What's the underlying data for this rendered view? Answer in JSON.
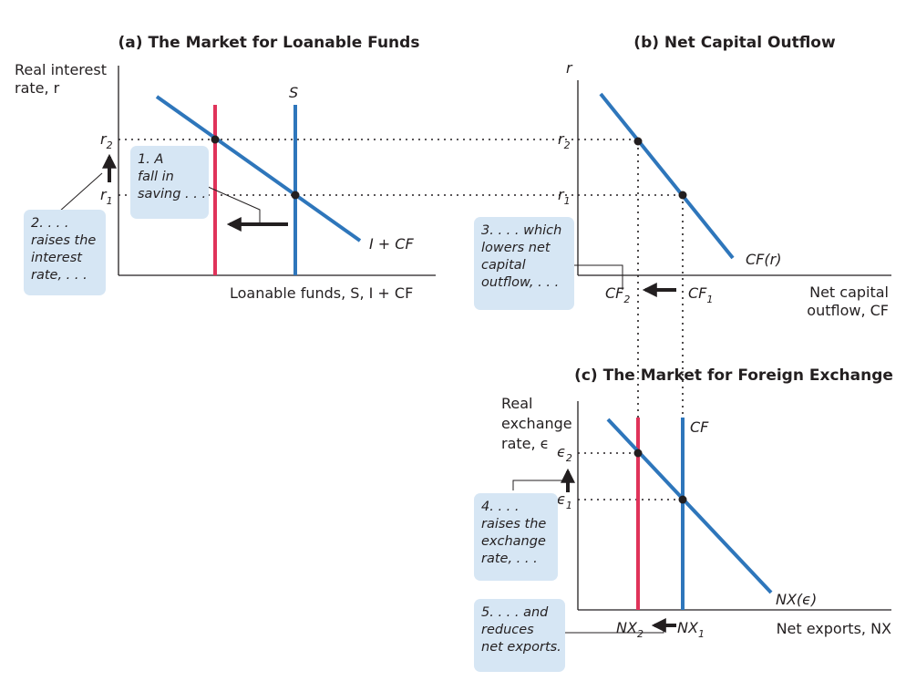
{
  "chart_data": [
    {
      "type": "line",
      "title": "(a) The Market for Loanable Funds",
      "ylabel_lines": [
        "Real interest",
        "rate, r"
      ],
      "xlabel": "Loanable funds, S, I + CF",
      "y_ticks": [
        {
          "main": "r",
          "sub": "2"
        },
        {
          "main": "r",
          "sub": "1"
        }
      ],
      "curves": [
        {
          "name": "S",
          "kind": "vertical",
          "shift": "fall in saving"
        },
        {
          "name": "I + CF",
          "kind": "downward-sloping"
        }
      ]
    },
    {
      "type": "line",
      "title": "(b) Net Capital Outflow",
      "ylabel": "r",
      "xlabel_lines": [
        "Net capital",
        "outflow, CF"
      ],
      "y_ticks": [
        {
          "main": "r",
          "sub": "2"
        },
        {
          "main": "r",
          "sub": "1"
        }
      ],
      "x_ticks": [
        {
          "main": "CF",
          "sub": "2"
        },
        {
          "main": "CF",
          "sub": "1"
        }
      ],
      "curves": [
        {
          "name": "CF(r)",
          "kind": "downward-sloping"
        }
      ]
    },
    {
      "type": "line",
      "title": "(c) The Market for Foreign Exchange",
      "ylabel_lines": [
        "Real",
        "exchange",
        "rate, ϵ"
      ],
      "xlabel": "Net exports, NX",
      "y_ticks": [
        {
          "main": "ϵ",
          "sub": "2"
        },
        {
          "main": "ϵ",
          "sub": "1"
        }
      ],
      "x_ticks": [
        {
          "main": "NX",
          "sub": "2"
        },
        {
          "main": "NX",
          "sub": "1"
        }
      ],
      "curves": [
        {
          "name": "CF",
          "kind": "vertical",
          "shift": "left"
        },
        {
          "name": "NX(ϵ)",
          "kind": "downward-sloping"
        }
      ]
    }
  ],
  "annotations": {
    "note1": [
      "1. A",
      "fall in",
      "saving . . ."
    ],
    "note2": [
      "2. . . .",
      "raises the",
      "interest",
      "rate, . . ."
    ],
    "note3": [
      "3. . . . which",
      "lowers net",
      "capital",
      "outflow, . . ."
    ],
    "note4": [
      "4. . . .",
      "raises the",
      "exchange",
      "rate, . . ."
    ],
    "note5": [
      "5. . . . and",
      "reduces",
      "net exports."
    ]
  },
  "colors": {
    "line": "#2e76bb",
    "shifted_line": "#e0335a",
    "callout": "#d6e6f4",
    "text": "#231f20"
  }
}
